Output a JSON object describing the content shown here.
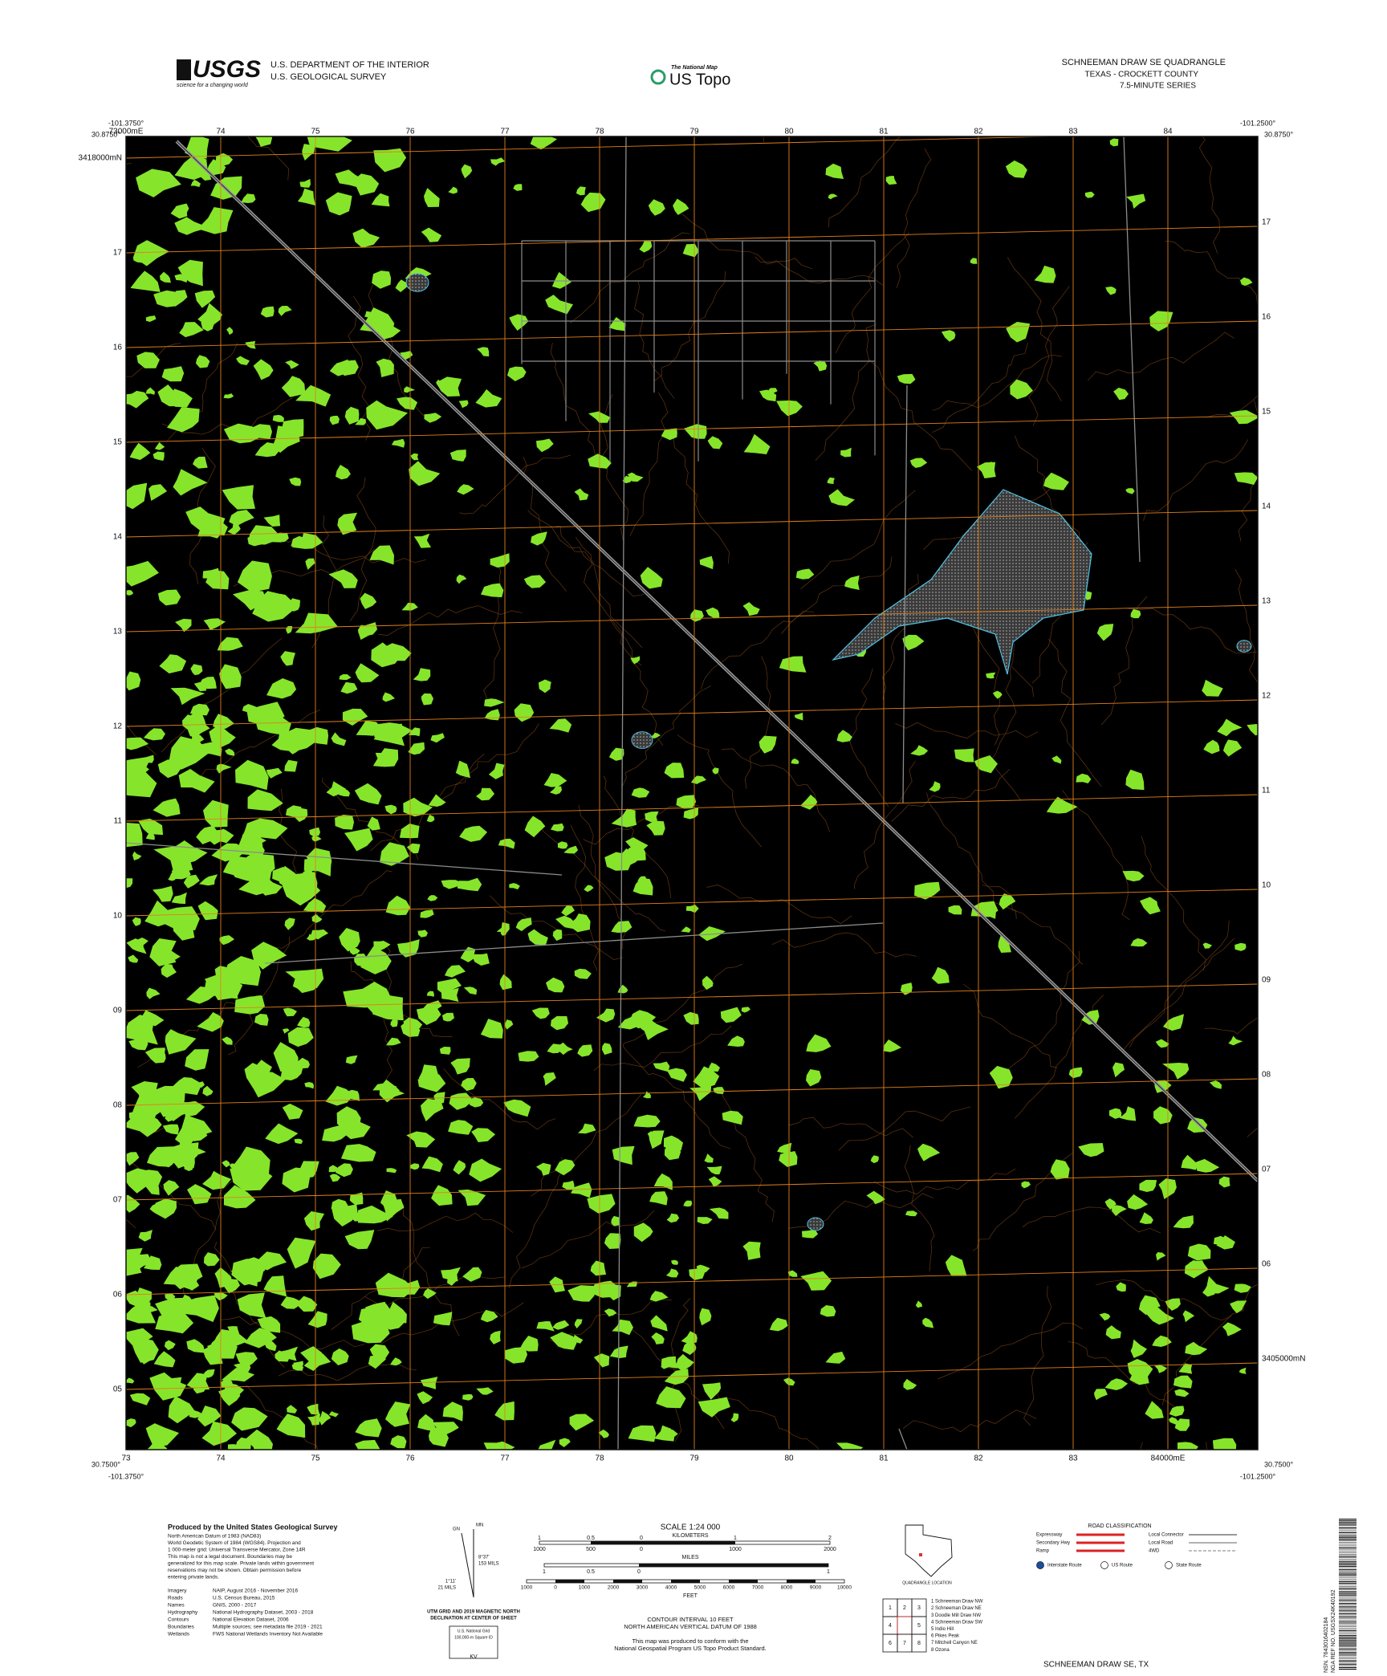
{
  "header": {
    "logo": "USGS",
    "logo_tagline": "science for a changing world",
    "agency_lines": [
      "U.S. DEPARTMENT OF THE INTERIOR",
      "U.S. GEOLOGICAL SURVEY"
    ],
    "product_tagline": "The National Map",
    "product": "US Topo",
    "title": "SCHNEEMAN DRAW SE QUADRANGLE",
    "subtitle_lines": [
      "TEXAS - CROCKETT COUNTY",
      "7.5-MINUTE SERIES"
    ]
  },
  "corners": {
    "nw_lon": "-101.3750°",
    "nw_lat": "30.8750°",
    "ne_lon": "-101.2500°",
    "ne_lat": "30.8750°",
    "sw_lat": "30.7500°",
    "sw_lon": "-101.3750°",
    "se_lat": "30.7500°",
    "se_lon": "-101.2500°"
  },
  "grid_labels": {
    "top": [
      "73000mE",
      "74",
      "75",
      "76",
      "77",
      "78",
      "79",
      "80",
      "81",
      "82",
      "83",
      "84"
    ],
    "bottom": [
      "73",
      "74",
      "75",
      "76",
      "77",
      "78",
      "79",
      "80",
      "81",
      "82",
      "83",
      "84000mE"
    ],
    "left": [
      "3418000mN",
      "17",
      "16",
      "15",
      "14",
      "13",
      "12",
      "11",
      "10",
      "09",
      "08",
      "07",
      "06",
      "05"
    ],
    "right": [
      "17",
      "16",
      "15",
      "14",
      "13",
      "12",
      "11",
      "10",
      "09",
      "08",
      "07",
      "06",
      "3405000mN"
    ]
  },
  "footer": {
    "credits_title": "Produced by the United States Geological Survey",
    "credits_lines": [
      "North American Datum of 1983 (NAD83)",
      "World Geodetic System of 1984 (WGS84). Projection and",
      "1 000-meter grid: Universal Transverse Mercator, Zone 14R",
      "This map is not a legal document. Boundaries may be",
      "generalized for this map scale. Private lands within government",
      "reservations may not be shown. Obtain permission before",
      "entering private lands."
    ],
    "sources": [
      [
        "Imagery",
        "NAIP, August 2016 - November 2016"
      ],
      [
        "Roads",
        "U.S. Census Bureau, 2015"
      ],
      [
        "Names",
        "GNIS, 2000 - 2017"
      ],
      [
        "Hydrography",
        "National Hydrography Dataset, 2003 - 2018"
      ],
      [
        "Contours",
        "National Elevation Dataset, 2006"
      ],
      [
        "Boundaries",
        "Multiple sources; see metadata file 2019 - 2021"
      ],
      [
        "Wetlands",
        "FWS National Wetlands Inventory Not Available"
      ]
    ],
    "declination": {
      "labels": [
        "GN",
        "MN"
      ],
      "angles": [
        "8°37'",
        "153 MILS",
        "1°11'",
        "21 MILS"
      ],
      "caption": [
        "UTM GRID AND 2019 MAGNETIC NORTH",
        "DECLINATION AT CENTER OF SHEET"
      ],
      "grid_box": [
        "U.S. National Grid",
        "100,000-m Square ID",
        "KV"
      ]
    },
    "scale": {
      "title": "SCALE 1:24 000",
      "km_label": "KILOMETERS",
      "km": [
        1,
        0.5,
        0,
        1,
        2
      ],
      "meters": [
        1000,
        500,
        0,
        1000,
        2000
      ],
      "miles_label": "MILES",
      "miles": [
        1,
        0.5,
        0,
        1
      ],
      "feet_label": "FEET",
      "feet": [
        1000,
        0,
        1000,
        2000,
        3000,
        4000,
        5000,
        6000,
        7000,
        8000,
        9000,
        10000
      ]
    },
    "contour": [
      "CONTOUR INTERVAL 10 FEET",
      "NORTH AMERICAN VERTICAL DATUM OF 1988"
    ],
    "standard": [
      "This map was produced to conform with the",
      "National Geospatial Program US Topo Product Standard."
    ],
    "location": "QUADRANGLE LOCATION",
    "roads": {
      "title": "ROAD CLASSIFICATION",
      "items": [
        [
          "Expressway",
          "Local Connector"
        ],
        [
          "Secondary Hwy",
          "Local Road"
        ],
        [
          "Ramp",
          "4WD"
        ]
      ],
      "routes": [
        "Interstate Route",
        "US Route",
        "State Route"
      ]
    },
    "adjoining": {
      "cells": [
        1,
        2,
        3,
        4,
        5,
        6,
        7,
        8
      ],
      "names": [
        "1 Schneeman Draw NW",
        "2 Schneeman Draw NE",
        "3 Doodle Mill Draw NW",
        "4 Schneeman Draw SW",
        "5 Indio Hill",
        "6 Pikes Peak",
        "7 Mitchell Canyon NE",
        "8 Ozona"
      ]
    },
    "sheet_name": "SCHNEEMAN DRAW SE, TX",
    "barcode": [
      "NSN. 7643016402184",
      "NGA REF NO. USGSX24K40192"
    ]
  }
}
